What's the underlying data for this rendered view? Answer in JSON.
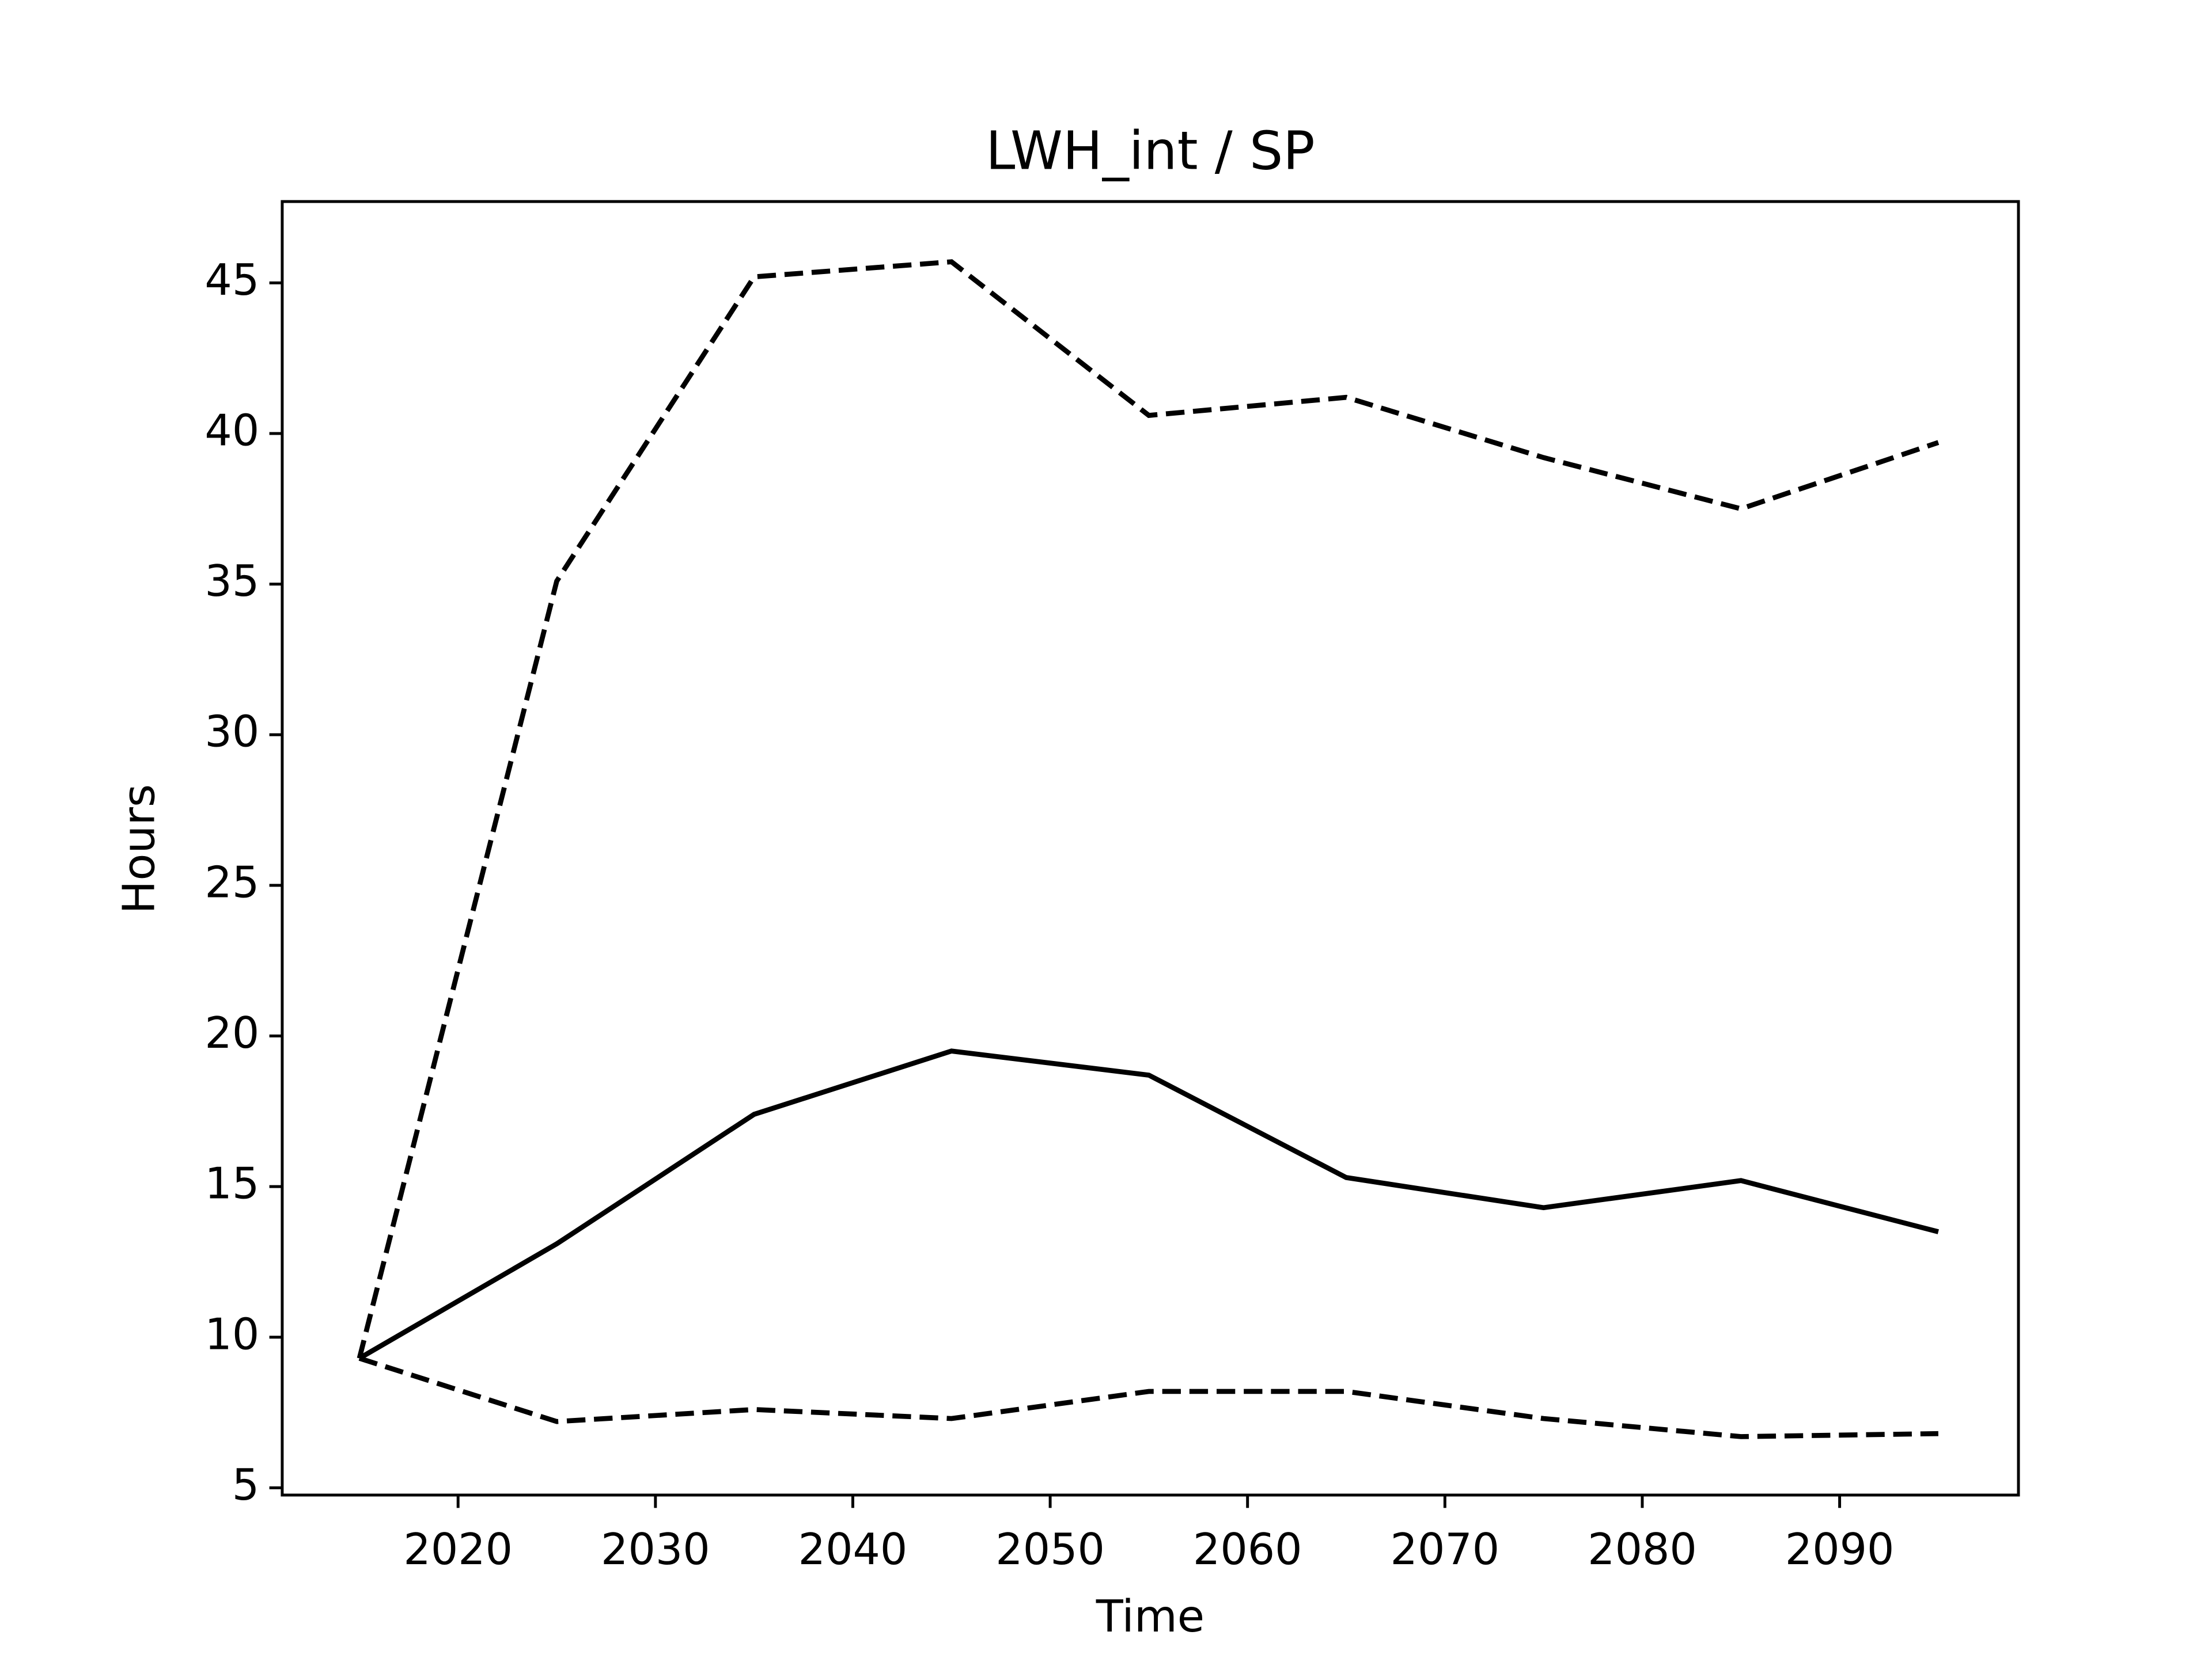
{
  "chart_data": {
    "type": "line",
    "title": "LWH_int / SP",
    "x_label": "Time",
    "y_label": "Hours",
    "x": [
      2015,
      2025,
      2035,
      2045,
      2055,
      2065,
      2075,
      2085,
      2095
    ],
    "series": [
      {
        "color": "#000000",
        "dash": "solid",
        "values": [
          9.3,
          13.1,
          17.4,
          19.5,
          18.7,
          15.3,
          14.3,
          15.2,
          13.5
        ]
      },
      {
        "color": "#000000",
        "dash": "dashed",
        "values": [
          9.3,
          35.1,
          45.2,
          45.7,
          40.6,
          41.2,
          39.2,
          37.5,
          39.7
        ]
      },
      {
        "color": "#000000",
        "dash": "dashed",
        "values": [
          9.3,
          7.2,
          7.6,
          7.3,
          8.2,
          8.2,
          7.3,
          6.7,
          6.8
        ]
      }
    ],
    "xlim": [
      2011.09,
      2099.06
    ],
    "xticks": [
      2020,
      2030,
      2040,
      2050,
      2060,
      2070,
      2080,
      2090
    ],
    "ylim": [
      4.76,
      47.7
    ],
    "yticks": [
      5,
      10,
      15,
      20,
      25,
      30,
      35,
      40,
      45
    ],
    "grid": false
  }
}
